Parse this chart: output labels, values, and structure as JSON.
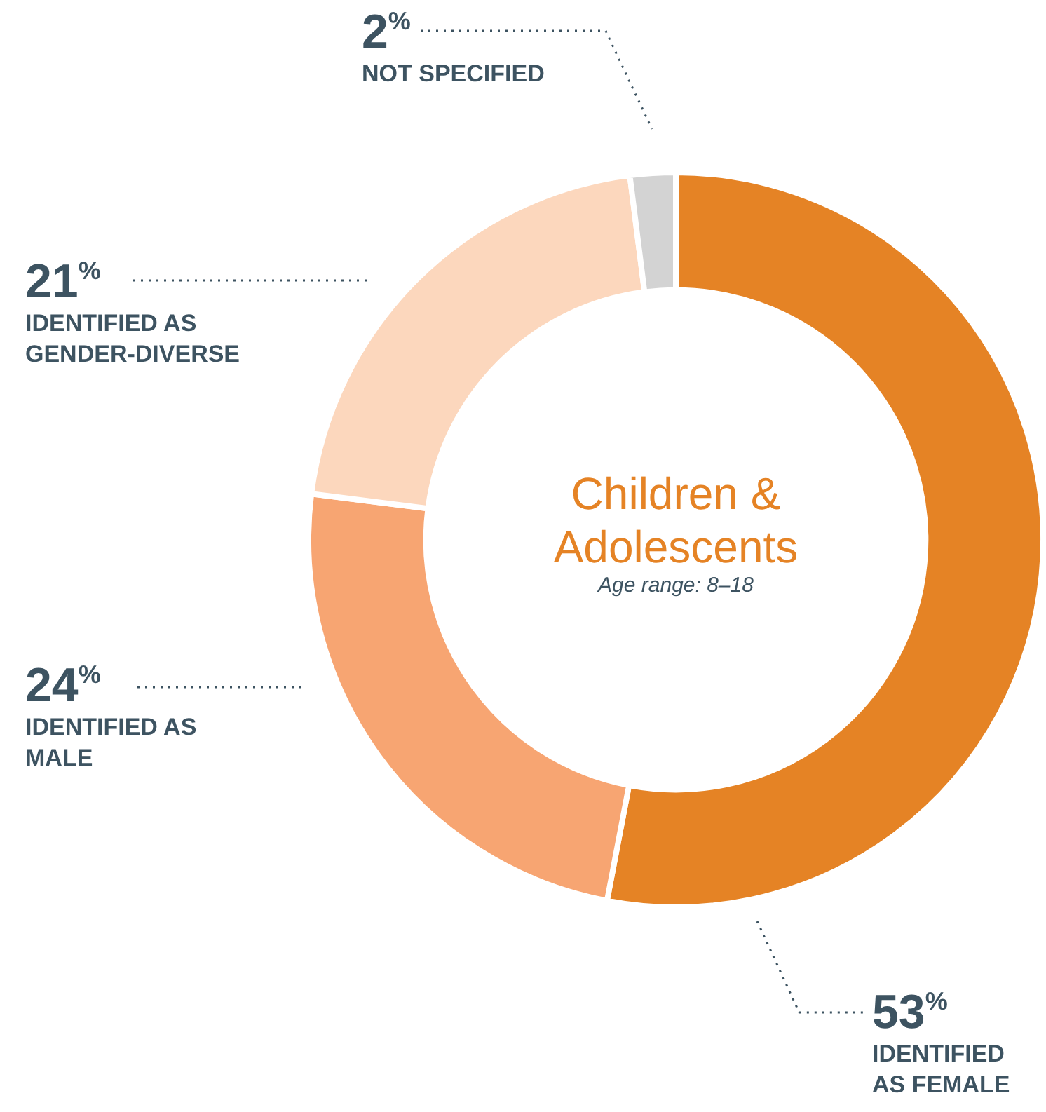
{
  "chart_data": {
    "type": "donut",
    "title": "Children & Adolescents",
    "subtitle": "Age range: 8–18",
    "categories": [
      "IDENTIFIED AS FEMALE",
      "IDENTIFIED AS MALE",
      "IDENTIFIED AS GENDER-DIVERSE",
      "NOT SPECIFIED"
    ],
    "values": [
      53,
      24,
      21,
      2
    ],
    "value_labels": [
      "53%",
      "24%",
      "21%",
      "2%"
    ],
    "colors": [
      "#e58325",
      "#f7a572",
      "#fcd7bd",
      "#d3d3d3"
    ],
    "legend": false
  }
}
